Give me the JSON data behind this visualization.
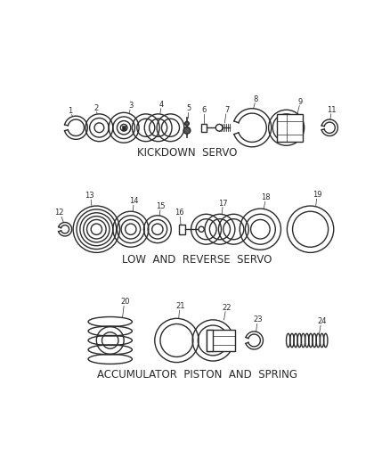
{
  "bg_color": "#ffffff",
  "line_color": "#2a2a2a",
  "section_labels": {
    "kickdown": "KICKDOWN  SERVO",
    "low_reverse": "LOW  AND  REVERSE  SERVO",
    "accumulator": "ACCUMULATOR  PISTON  AND  SPRING"
  },
  "font_size_section": 8.5,
  "font_size_part": 6.0
}
